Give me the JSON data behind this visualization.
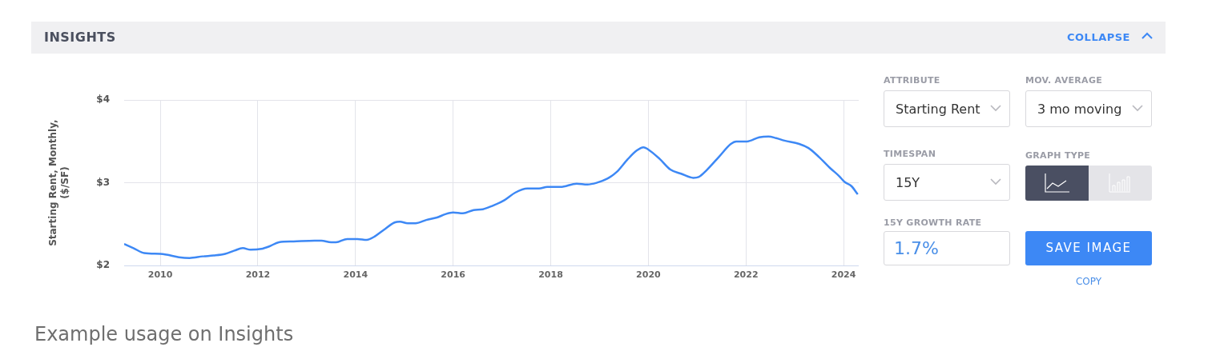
{
  "chart_data": {
    "type": "line",
    "title": "INSIGHTS",
    "ylabel": "Starting Rent, Monthly, ($/SF)",
    "xlim": [
      2009.26,
      2024.31
    ],
    "xticks": [
      2010,
      2012,
      2014,
      2016,
      2018,
      2020,
      2022,
      2024
    ],
    "ylim": [
      2,
      4
    ],
    "yticks": [
      {
        "value": 2,
        "label": "$2"
      },
      {
        "value": 3,
        "label": "$3"
      },
      {
        "value": 4,
        "label": "$4"
      }
    ],
    "grid": true,
    "series": [
      {
        "color": "#3d88f5",
        "x": [
          2009.26,
          2009.45,
          2009.67,
          2010,
          2010.13,
          2010.38,
          2010.6,
          2010.87,
          2011.09,
          2011.33,
          2011.52,
          2011.69,
          2011.85,
          2012.07,
          2012.23,
          2012.43,
          2012.73,
          2013.16,
          2013.3,
          2013.5,
          2013.6,
          2013.83,
          2014.04,
          2014.23,
          2014.39,
          2014.58,
          2014.8,
          2014.91,
          2015.07,
          2015.23,
          2015.45,
          2015.67,
          2015.84,
          2016,
          2016.2,
          2016.42,
          2016.61,
          2016.8,
          2017.05,
          2017.27,
          2017.52,
          2017.76,
          2017.93,
          2018.2,
          2018.53,
          2018.75,
          2018.94,
          2019.16,
          2019.35,
          2019.57,
          2019.76,
          2019.9,
          2019.98,
          2020.23,
          2020.45,
          2020.67,
          2020.92,
          2021.03,
          2021.19,
          2021.44,
          2021.69,
          2021.8,
          2022.02,
          2022.27,
          2022.46,
          2022.62,
          2022.79,
          2023.09,
          2023.28,
          2023.5,
          2023.72,
          2023.91,
          2024.02,
          2024.16,
          2024.29
        ],
        "values": [
          2.26,
          2.21,
          2.15,
          2.14,
          2.13,
          2.1,
          2.09,
          2.11,
          2.12,
          2.14,
          2.18,
          2.21,
          2.19,
          2.2,
          2.23,
          2.28,
          2.29,
          2.3,
          2.3,
          2.28,
          2.28,
          2.32,
          2.32,
          2.31,
          2.35,
          2.43,
          2.52,
          2.53,
          2.51,
          2.51,
          2.55,
          2.58,
          2.62,
          2.64,
          2.63,
          2.67,
          2.68,
          2.72,
          2.79,
          2.88,
          2.93,
          2.93,
          2.95,
          2.95,
          2.99,
          2.98,
          3.0,
          3.05,
          3.13,
          3.28,
          3.39,
          3.43,
          3.41,
          3.29,
          3.16,
          3.11,
          3.06,
          3.07,
          3.15,
          3.31,
          3.47,
          3.5,
          3.5,
          3.55,
          3.56,
          3.54,
          3.51,
          3.47,
          3.42,
          3.31,
          3.18,
          3.08,
          3.01,
          2.96,
          2.86
        ]
      }
    ],
    "annotations": [
      "COLLAPSE",
      "ATTRIBUTE",
      "Starting Rent",
      "MOV. AVERAGE",
      "3 mo moving",
      "TIMESPAN",
      "15Y",
      "GRAPH TYPE",
      "15Y GROWTH RATE",
      "1.7%",
      "SAVE IMAGE",
      "COPY",
      "Example usage on Insights"
    ]
  }
}
